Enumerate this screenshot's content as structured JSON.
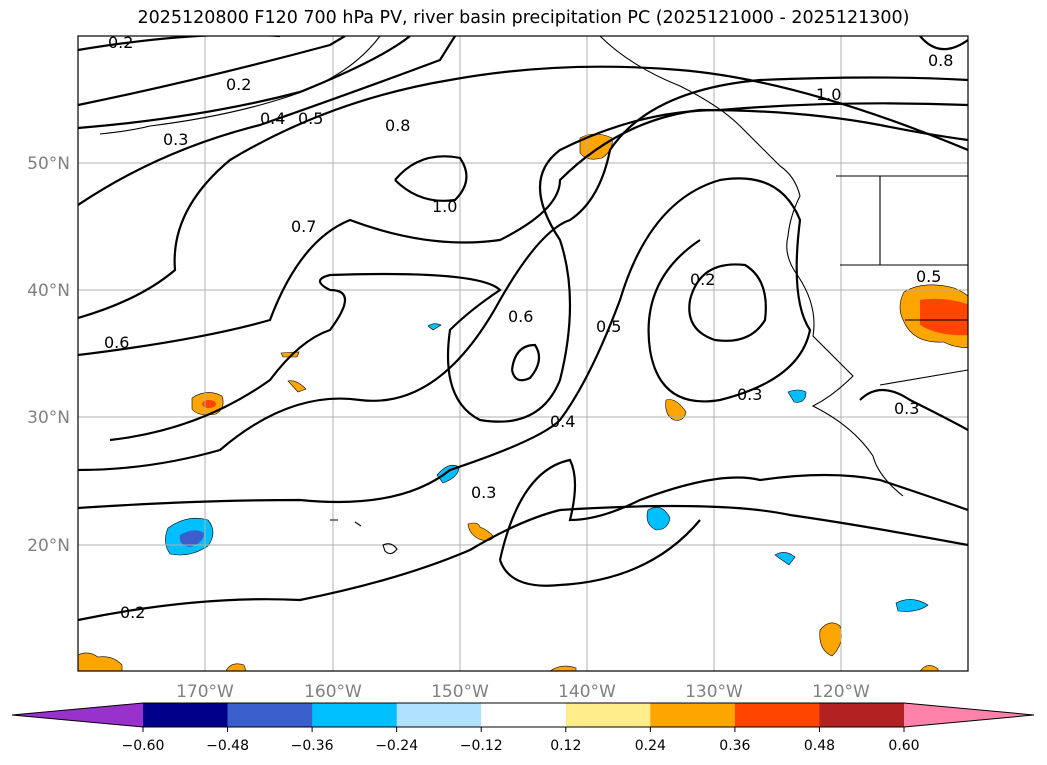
{
  "title": "2025120800 F120 700 hPa PV, river basin precipitation PC (2025121000 - 2025121300)",
  "map": {
    "lon_labels": [
      "170°W",
      "160°W",
      "150°W",
      "140°W",
      "130°W",
      "120°W"
    ],
    "lat_labels": [
      "50°N",
      "40°N",
      "30°N",
      "20°N"
    ],
    "contour_labels": [
      "0.2",
      "0.2",
      "0.4",
      "0.5",
      "0.3",
      "0.8",
      "1.0",
      "1.0",
      "0.7",
      "0.6",
      "0.6",
      "0.5",
      "0.2",
      "0.4",
      "0.3",
      "0.3",
      "0.2",
      "0.5",
      "0.3",
      "0.8"
    ]
  },
  "colorbar": {
    "ticks": [
      "−0.60",
      "−0.48",
      "−0.36",
      "−0.24",
      "−0.12",
      "0.12",
      "0.24",
      "0.36",
      "0.48",
      "0.60"
    ],
    "colors": [
      "#9932CC",
      "#00008B",
      "#3A5FCD",
      "#00BFFF",
      "#B0E2FF",
      "#FFFFFF",
      "#FFEC8B",
      "#FFA500",
      "#FF4500",
      "#B22222",
      "#FF82AB"
    ]
  },
  "chart_data": {
    "type": "contour",
    "title": "2025120800 F120 700 hPa PV, river basin precipitation PC (2025121000 - 2025121300)",
    "lon_range": [
      -180,
      -110
    ],
    "lat_range": [
      10,
      60
    ],
    "contour_levels": [
      0.2,
      0.3,
      0.4,
      0.5,
      0.6,
      0.7,
      0.8,
      1.0
    ],
    "fill_levels": [
      -0.6,
      -0.48,
      -0.36,
      -0.24,
      -0.12,
      0.12,
      0.24,
      0.36,
      0.48,
      0.6
    ]
  }
}
